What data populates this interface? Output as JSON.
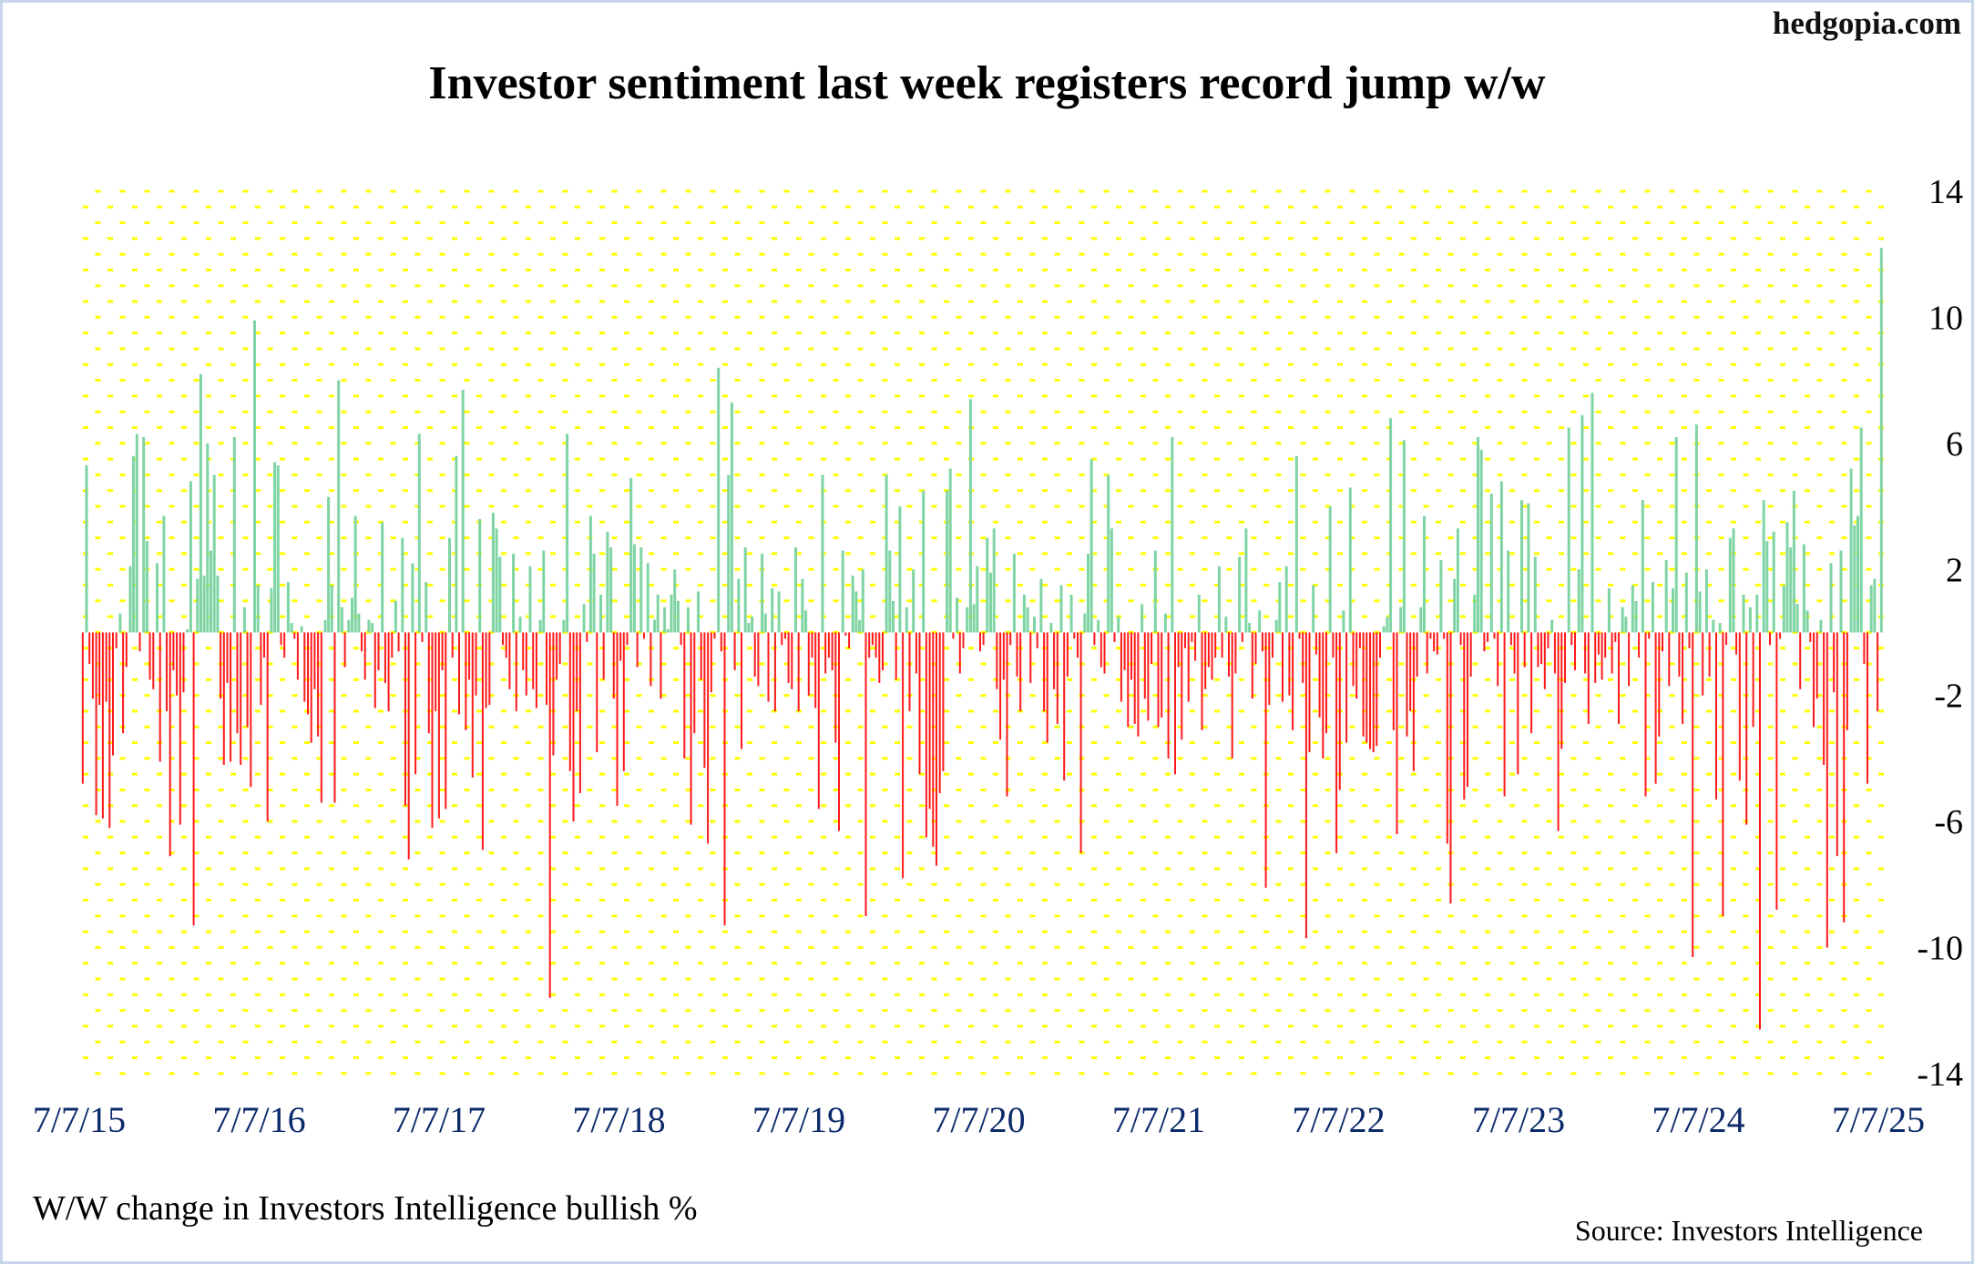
{
  "site": "hedgopia.com",
  "caption": "W/W change in Investors Intelligence bullish %",
  "source": "Source: Investors Intelligence",
  "colors": {
    "positive": "#7fd4a4",
    "negative": "#ff1a1a",
    "grid": "#ffff00",
    "xlabels": "#0d2a6b"
  },
  "chart_data": {
    "type": "bar",
    "title": "Investor sentiment last week registers record jump w/w",
    "xlabel": "",
    "ylabel": "",
    "ylim": [
      -14,
      14
    ],
    "yticks": [
      14,
      10,
      6,
      2,
      -2,
      -6,
      -10,
      -14
    ],
    "ytick_labels": [
      "14",
      "10",
      "6",
      "2",
      "-2",
      "-6",
      "-10",
      "-14"
    ],
    "xtick_labels": [
      "7/7/15",
      "7/7/16",
      "7/7/17",
      "7/7/18",
      "7/7/19",
      "7/7/20",
      "7/7/21",
      "7/7/22",
      "7/7/23",
      "7/7/24",
      "7/7/25"
    ],
    "x_range": [
      "7/7/15",
      "7/7/25"
    ],
    "frequency": "weekly",
    "grid": "dotted",
    "values": [
      -4.8,
      5.3,
      -1,
      -2.1,
      -5.8,
      -2.3,
      -5.9,
      -2.2,
      -6.2,
      -3.9,
      -0.5,
      0.6,
      -3.2,
      -1.1,
      2.1,
      5.6,
      6.3,
      -0.6,
      6.2,
      2.9,
      -1.5,
      -1.8,
      2.2,
      -4.1,
      3.7,
      -2.5,
      -7.1,
      -1.2,
      -2.0,
      -6.1,
      -1.9,
      0.1,
      4.8,
      -9.3,
      1.7,
      8.2,
      1.8,
      6.0,
      2.6,
      5.0,
      1.8,
      -2.1,
      -4.2,
      -1.6,
      -4.1,
      6.2,
      -3.2,
      -4.2,
      0.8,
      -3.0,
      -4.9,
      9.9,
      1.5,
      -2.3,
      -0.8,
      -6.0,
      1.4,
      5.4,
      5.3,
      -0.4,
      -0.8,
      1.6,
      0.3,
      -0.2,
      -1.5,
      0.2,
      -2.2,
      -2.6,
      -3.5,
      -1.8,
      -3.3,
      -5.4,
      0.4,
      4.3,
      1.5,
      -5.4,
      8.0,
      0.8,
      -1.1,
      0.4,
      1.1,
      3.7,
      0.6,
      -0.6,
      -1.5,
      0.4,
      0.3,
      -2.4,
      -1.2,
      3.5,
      -1.6,
      -2.5,
      -0.8,
      1.0,
      -0.6,
      3.0,
      -5.5,
      -7.2,
      2.2,
      -4.5,
      6.3,
      -0.3,
      1.6,
      -3.2,
      -6.2,
      -2.5,
      -5.9,
      -1.2,
      -5.6,
      3.0,
      -0.8,
      5.6,
      -2.6,
      7.7,
      -3.1,
      -1.5,
      -4.6,
      -2.0,
      3.6,
      -6.9,
      -2.4,
      -2.3,
      3.8,
      3.3,
      2.4,
      -0.4,
      -0.8,
      -1.8,
      2.5,
      -2.5,
      0.5,
      -1.2,
      -2.0,
      2.1,
      -1.8,
      -2.4,
      0.4,
      2.6,
      -2.3,
      -11.6,
      -3.9,
      -1.5,
      -1.0,
      0.4,
      6.3,
      -4.4,
      -6.0,
      -2.5,
      -5.1,
      0.9,
      -0.3,
      3.7,
      2.5,
      -3.8,
      1.2,
      -1.5,
      3.2,
      2.7,
      -2.1,
      -5.5,
      -0.9,
      -4.4,
      -0.4,
      4.9,
      2.8,
      -1.1,
      2.7,
      -0.2,
      2.2,
      -1.7,
      0.4,
      1.2,
      -2.1,
      0.8,
      0.1,
      1.2,
      2.0,
      1.0,
      -0.4,
      -4.0,
      0.8,
      -6.1,
      -3.2,
      1.3,
      -1.5,
      -4.3,
      -6.7,
      -1.9,
      -0.2,
      8.4,
      -0.6,
      -9.3,
      5.0,
      7.3,
      -1.2,
      1.7,
      -3.7,
      2.7,
      0.3,
      0.5,
      -1.4,
      -1.7,
      2.5,
      0.6,
      -2.2,
      1.4,
      -2.5,
      1.3,
      -0.4,
      -0.2,
      -1.6,
      -1.8,
      2.7,
      -2.5,
      1.7,
      0.7,
      -2.0,
      -0.8,
      -2.4,
      -5.6,
      5.0,
      -1.3,
      -0.8,
      -1.2,
      -3.5,
      -6.3,
      2.6,
      -0.1,
      -0.5,
      1.8,
      1.3,
      0.4,
      2.0,
      -9.0,
      -0.8,
      -0.4,
      -0.8,
      -1.6,
      -1.2,
      5.0,
      2.6,
      1.0,
      -1.5,
      4.0,
      -7.8,
      0.8,
      -2.5,
      2.0,
      -1.3,
      -4.5,
      4.5,
      -6.5,
      -5.6,
      -6.8,
      -7.4,
      -5.1,
      -4.4,
      4.5,
      5.2,
      -0.2,
      1.1,
      -1.3,
      -0.5,
      0.8,
      7.4,
      0.9,
      2.1,
      -0.6,
      -0.4,
      3.0,
      1.9,
      3.3,
      -1.8,
      -3.4,
      -1.5,
      -5.2,
      -0.4,
      2.5,
      -1.4,
      -2.5,
      1.2,
      0.8,
      -1.6,
      0.5,
      -0.5,
      1.7,
      -2.5,
      -3.5,
      0.3,
      -1.8,
      -2.9,
      1.5,
      -4.7,
      -1.4,
      1.2,
      -0.2,
      -0.8,
      -7.0,
      0.6,
      2.5,
      5.5,
      -0.4,
      0.4,
      -1.1,
      -1.3,
      5.0,
      3.3,
      -0.3,
      0.5,
      -2.2,
      -1.2,
      -3.0,
      -1.5,
      -2.9,
      -3.3,
      0.9,
      -2.1,
      -2.8,
      -1.0,
      2.6,
      -3.0,
      -2.7,
      0.6,
      -4.0,
      6.2,
      -4.5,
      -1.1,
      -3.4,
      -0.5,
      -2.2,
      -0.3,
      -0.9,
      1.2,
      -3.1,
      -1.8,
      -1.1,
      -1.5,
      -0.8,
      2.1,
      -0.8,
      0.5,
      -1.4,
      -4.0,
      -1.3,
      2.4,
      -0.3,
      3.3,
      0.3,
      -2.1,
      -1.0,
      0.7,
      -0.6,
      -8.1,
      -2.3,
      -0.8,
      0.4,
      1.6,
      -2.2,
      2.1,
      -2.0,
      -3.1,
      5.6,
      -0.2,
      -1.6,
      -9.7,
      -3.8,
      1.5,
      -0.7,
      -2.7,
      -4.0,
      -3.2,
      4.0,
      -0.8,
      -7.0,
      -5.0,
      0.7,
      -3.5,
      4.6,
      -1.7,
      -2.1,
      -0.5,
      -3.3,
      -3.5,
      -3.7,
      -3.8,
      -3.6,
      -0.8,
      0.2,
      0.5,
      6.8,
      -3.1,
      -6.4,
      0.8,
      6.1,
      -3.3,
      -2.5,
      -4.4,
      -1.4,
      0.8,
      3.7,
      -1.3,
      -0.2,
      -0.6,
      -0.7,
      2.3,
      -0.2,
      -6.7,
      -8.6,
      1.7,
      3.3,
      -0.4,
      -5.3,
      -4.9,
      -1.4,
      1.2,
      6.2,
      5.8,
      -0.6,
      -0.3,
      4.4,
      -0.2,
      -1.7,
      4.8,
      -5.2,
      2.6,
      -0.4,
      -1.3,
      -4.5,
      4.2,
      -1.1,
      4.1,
      -3.2,
      2.4,
      -1.1,
      -1.0,
      -1.8,
      -0.5,
      0.4,
      -1.3,
      -6.3,
      -3.7,
      -1.6,
      6.5,
      -0.4,
      -1.2,
      2.0,
      6.9,
      -1.3,
      -2.9,
      7.6,
      -1.6,
      -0.7,
      -1.5,
      -0.8,
      1.4,
      -1.3,
      -0.3,
      -2.9,
      0.8,
      0.5,
      -1.7,
      1.5,
      1.0,
      -0.8,
      4.2,
      -5.2,
      -0.2,
      1.6,
      -4.8,
      -3.3,
      -0.6,
      2.3,
      -1.7,
      1.4,
      6.2,
      -1.4,
      -2.9,
      1.9,
      -0.5,
      -10.3,
      6.6,
      1.3,
      -2.0,
      2.0,
      -1.4,
      0.4,
      -5.3,
      0.3,
      -9.0,
      -0.4,
      3.0,
      3.3,
      -0.7,
      -4.7,
      1.2,
      -6.1,
      0.8,
      -3.0,
      1.2,
      -12.6,
      4.2,
      2.9,
      -0.4,
      3.2,
      -8.8,
      -0.2,
      1.5,
      3.5,
      2.7,
      4.5,
      0.9,
      -1.8,
      2.8,
      0.7,
      -0.3,
      -3.0,
      -2.1,
      0.4,
      -4.2,
      -10.0,
      2.2,
      -1.9,
      -7.1,
      2.6,
      -9.2,
      -3.1,
      5.2,
      3.4,
      3.7,
      6.5,
      -1.0,
      -4.8,
      1.5,
      1.7,
      -2.5,
      12.2
    ]
  }
}
